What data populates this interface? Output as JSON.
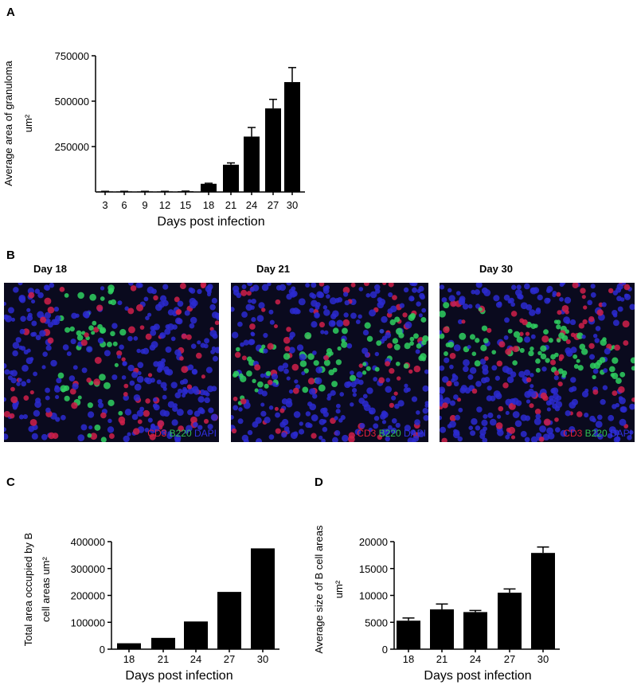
{
  "panels": [
    "A",
    "B",
    "C",
    "D"
  ],
  "images": [
    {
      "title": "Day 18",
      "labels": [
        "CD3",
        "B220",
        "DAPI"
      ]
    },
    {
      "title": "Day 21",
      "labels": [
        "CD3",
        "B220",
        "DAPI"
      ]
    },
    {
      "title": "Day 30",
      "labels": [
        "CD3",
        "B220",
        "DAPI"
      ]
    }
  ],
  "chart_data": [
    {
      "type": "bar",
      "xlabel": "Days post infection",
      "ylabel": [
        "Average area of granuloma",
        "um²"
      ],
      "categories": [
        "3",
        "6",
        "9",
        "12",
        "15",
        "18",
        "21",
        "24",
        "27",
        "30"
      ],
      "values": [
        3000,
        3000,
        3000,
        3000,
        4000,
        45000,
        150000,
        305000,
        460000,
        605000
      ],
      "errors": [
        500,
        500,
        500,
        500,
        800,
        3000,
        10000,
        50000,
        50000,
        80000
      ],
      "color": "#000000",
      "ylim": [
        0,
        750000
      ],
      "yticks": [
        250000,
        500000,
        750000
      ]
    },
    {
      "type": "bar",
      "xlabel": "Days post infection",
      "ylabel": [
        "Total area occupied by B",
        "cell areas um²"
      ],
      "categories": [
        "18",
        "21",
        "24",
        "27",
        "30"
      ],
      "values": [
        22000,
        42000,
        103000,
        213000,
        375000
      ],
      "color": "#000000",
      "ylim": [
        0,
        400000
      ],
      "yticks": [
        0,
        100000,
        200000,
        300000,
        400000
      ]
    },
    {
      "type": "bar",
      "xlabel": "Days post infection",
      "ylabel": [
        "Average size of B cell areas",
        "um²"
      ],
      "categories": [
        "18",
        "21",
        "24",
        "27",
        "30"
      ],
      "values": [
        5300,
        7400,
        6900,
        10500,
        17900
      ],
      "errors": [
        500,
        1000,
        300,
        700,
        1100
      ],
      "color": "#000000",
      "ylim": [
        0,
        20000
      ],
      "yticks": [
        0,
        5000,
        10000,
        15000,
        20000
      ]
    }
  ]
}
